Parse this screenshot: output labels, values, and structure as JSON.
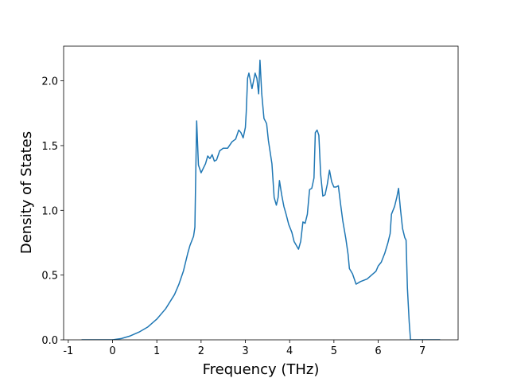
{
  "chart_data": {
    "type": "line",
    "xlabel": "Frequency (THz)",
    "ylabel": "Density of States",
    "x": [
      -0.7,
      0,
      0.2,
      0.4,
      0.6,
      0.8,
      1.0,
      1.2,
      1.4,
      1.5,
      1.6,
      1.7,
      1.75,
      1.83,
      1.86,
      1.88,
      1.9,
      1.94,
      2.0,
      2.1,
      2.15,
      2.2,
      2.25,
      2.3,
      2.35,
      2.42,
      2.5,
      2.6,
      2.7,
      2.78,
      2.85,
      2.9,
      2.95,
      3.0,
      3.02,
      3.05,
      3.08,
      3.15,
      3.22,
      3.26,
      3.3,
      3.33,
      3.37,
      3.42,
      3.48,
      3.52,
      3.6,
      3.65,
      3.7,
      3.74,
      3.77,
      3.82,
      3.87,
      3.92,
      3.98,
      4.05,
      4.1,
      4.2,
      4.25,
      4.3,
      4.35,
      4.4,
      4.45,
      4.5,
      4.55,
      4.58,
      4.62,
      4.66,
      4.7,
      4.75,
      4.8,
      4.85,
      4.9,
      4.95,
      5.0,
      5.05,
      5.1,
      5.15,
      5.2,
      5.27,
      5.32,
      5.35,
      5.42,
      5.5,
      5.6,
      5.75,
      5.85,
      5.95,
      6.0,
      6.07,
      6.15,
      6.22,
      6.27,
      6.3,
      6.37,
      6.42,
      6.46,
      6.5,
      6.55,
      6.6,
      6.63,
      6.66,
      6.7,
      6.73,
      7.4
    ],
    "series": [
      {
        "color": "#1f77b4",
        "values": [
          0,
          0,
          0.01,
          0.03,
          0.06,
          0.1,
          0.16,
          0.24,
          0.35,
          0.43,
          0.53,
          0.67,
          0.73,
          0.8,
          0.87,
          1.3,
          1.69,
          1.35,
          1.29,
          1.36,
          1.42,
          1.4,
          1.43,
          1.38,
          1.39,
          1.46,
          1.48,
          1.48,
          1.53,
          1.55,
          1.62,
          1.6,
          1.56,
          1.64,
          1.76,
          2.02,
          2.06,
          1.94,
          2.06,
          2.02,
          1.9,
          2.16,
          1.9,
          1.71,
          1.67,
          1.54,
          1.36,
          1.1,
          1.04,
          1.1,
          1.23,
          1.12,
          1.03,
          0.97,
          0.89,
          0.83,
          0.76,
          0.7,
          0.76,
          0.91,
          0.9,
          0.97,
          1.16,
          1.17,
          1.25,
          1.6,
          1.62,
          1.58,
          1.28,
          1.11,
          1.12,
          1.2,
          1.31,
          1.22,
          1.18,
          1.18,
          1.19,
          1.05,
          0.92,
          0.78,
          0.66,
          0.55,
          0.51,
          0.43,
          0.45,
          0.47,
          0.5,
          0.53,
          0.57,
          0.6,
          0.67,
          0.75,
          0.82,
          0.97,
          1.03,
          1.1,
          1.17,
          1.02,
          0.86,
          0.79,
          0.77,
          0.4,
          0.14,
          0,
          0
        ]
      }
    ],
    "xlim": [
      -1.105,
      7.805
    ],
    "xticks": [
      -1,
      0,
      1,
      2,
      3,
      4,
      5,
      6,
      7
    ],
    "ylim": [
      0,
      2.268
    ],
    "yticks": [
      {
        "value": 0,
        "label": "0.0"
      },
      {
        "value": 0.5,
        "label": "0.5"
      },
      {
        "value": 1,
        "label": "1.0"
      },
      {
        "value": 1.5,
        "label": "1.5"
      },
      {
        "value": 2,
        "label": "2.0"
      }
    ]
  }
}
